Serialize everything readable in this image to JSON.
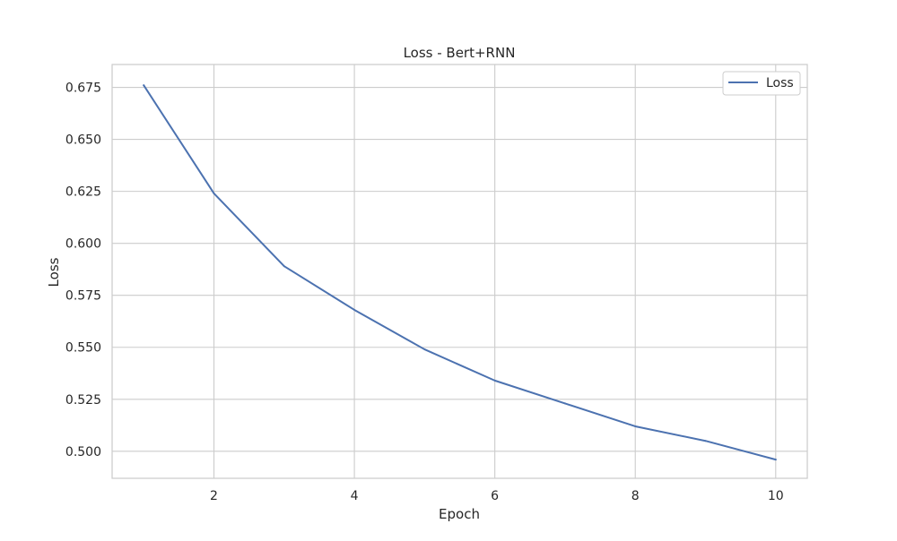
{
  "chart_data": {
    "type": "line",
    "title": "Loss - Bert+RNN",
    "xlabel": "Epoch",
    "ylabel": "Loss",
    "xlim": [
      0.55,
      10.45
    ],
    "ylim": [
      0.487,
      0.686
    ],
    "xticks": [
      2,
      4,
      6,
      8,
      10
    ],
    "yticks": [
      0.5,
      0.525,
      0.55,
      0.575,
      0.6,
      0.625,
      0.65,
      0.675
    ],
    "grid": true,
    "legend_position": "top-right",
    "x": [
      1,
      2,
      3,
      4,
      5,
      6,
      7,
      8,
      9,
      10
    ],
    "series": [
      {
        "name": "Loss",
        "color": "#4c72b0",
        "values": [
          0.676,
          0.624,
          0.589,
          0.568,
          0.549,
          0.534,
          0.523,
          0.512,
          0.505,
          0.496
        ]
      }
    ]
  }
}
